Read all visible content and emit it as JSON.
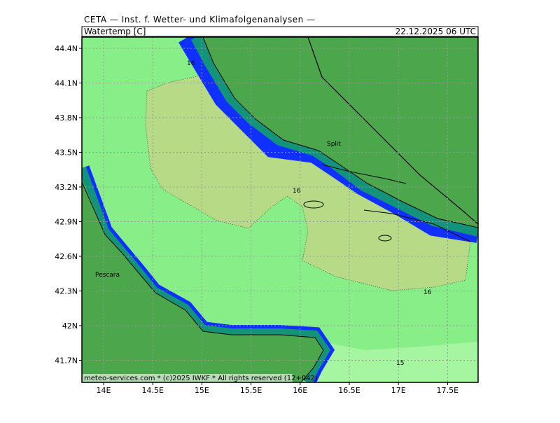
{
  "header": "CETA — Inst. f. Wetter- und Klimafolgenanalysen —",
  "title": "Watertemp [C]",
  "valid_time": "22.12.2025 06 UTC",
  "lat_labels": [
    "44.4N",
    "44.1N",
    "43.8N",
    "43.5N",
    "43.2N",
    "42.9N",
    "42.6N",
    "42.3N",
    "42N",
    "41.7N"
  ],
  "lon_labels": [
    "14E",
    "14.5E",
    "15E",
    "15.5E",
    "16E",
    "16.5E",
    "17E",
    "17.5E"
  ],
  "contour_labels": [
    "16",
    "16",
    "16",
    "15"
  ],
  "places": [
    "Split",
    "Pescara"
  ],
  "footer": "meteo-services.com * (c)2025 IWKF * All rights reserved (12+042)"
}
